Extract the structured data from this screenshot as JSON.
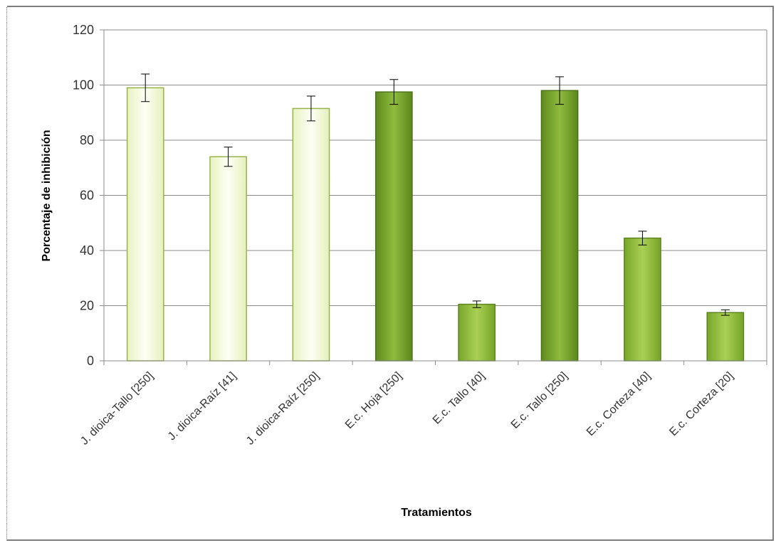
{
  "chart_data": {
    "type": "bar",
    "title": "",
    "xlabel": "Tratamientos",
    "ylabel": "Porcentaje de inhibición",
    "ylim": [
      0,
      120
    ],
    "yticks": [
      0,
      20,
      40,
      60,
      80,
      100,
      120
    ],
    "grid": true,
    "categories": [
      "J. dioica-Tallo [250]",
      "J. dioica-Raíz [41]",
      "J. dioica-Raíz [250]",
      "E.c. Hoja [250]",
      "E.c. Tallo [40]",
      "E.c. Tallo [250]",
      "E.c. Corteza [40]",
      "E.c. Corteza [20]"
    ],
    "values": [
      99,
      74,
      91.5,
      97.5,
      20.5,
      98,
      44.5,
      17.5
    ],
    "errors": [
      5,
      3.5,
      4.5,
      4.5,
      1.2,
      5,
      2.5,
      1
    ],
    "bar_colors": [
      "#f4fadc",
      "#f4fadc",
      "#f4fadc",
      "#6f9a26",
      "#8ab43a",
      "#76a22c",
      "#86b034",
      "#8cb63c"
    ],
    "bar_outlines": [
      "#9ab24a",
      "#9ab24a",
      "#9ab24a",
      "#4f721a",
      "#5e8420",
      "#4f721a",
      "#5e8420",
      "#5e8420"
    ]
  }
}
